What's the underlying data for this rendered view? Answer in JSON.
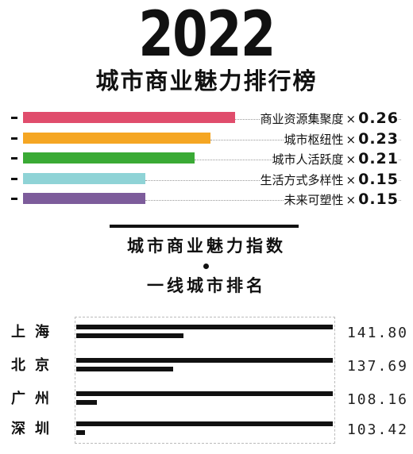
{
  "header": {
    "year": "2022",
    "title": "城市商业魅力排行榜"
  },
  "factors": [
    {
      "label": "商业资源集聚度",
      "times": "×",
      "weight": "0.26",
      "value": 0.26,
      "color": "#e04d6c"
    },
    {
      "label": "城市枢纽性",
      "times": "×",
      "weight": "0.23",
      "value": 0.23,
      "color": "#f5a623"
    },
    {
      "label": "城市人活跃度",
      "times": "×",
      "weight": "0.21",
      "value": 0.21,
      "color": "#3aaa35"
    },
    {
      "label": "生活方式多样性",
      "times": "×",
      "weight": "0.15",
      "value": 0.15,
      "color": "#8fd3d6"
    },
    {
      "label": "未来可塑性",
      "times": "×",
      "weight": "0.15",
      "value": 0.15,
      "color": "#7d5c9b"
    }
  ],
  "index_section": {
    "title": "城市商业魅力指数",
    "subtitle": "一线城市排名"
  },
  "chart_data": {
    "type": "bar",
    "categories": [
      "上海",
      "北京",
      "广州",
      "深圳"
    ],
    "values": [
      141.8,
      137.69,
      108.16,
      103.42
    ],
    "value_labels": [
      "141.80",
      "137.69",
      "108.16",
      "103.42"
    ],
    "scale_min": 100,
    "scale_max": 141.8
  }
}
